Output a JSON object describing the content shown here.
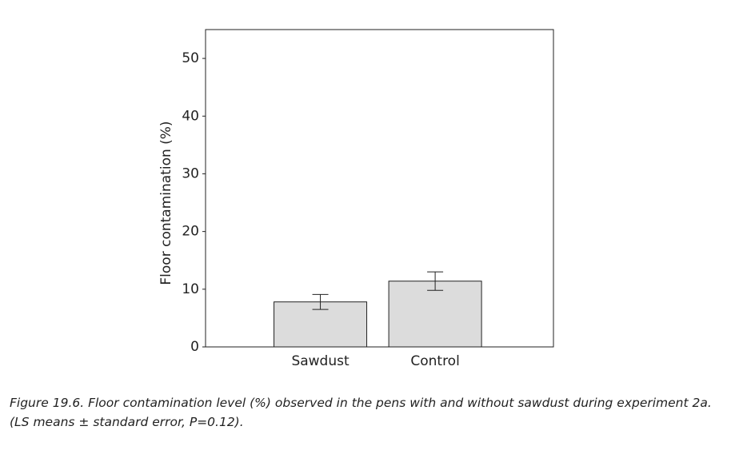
{
  "chart_data": {
    "type": "bar",
    "y_label": "Floor contamination (%)",
    "categories": [
      "Sawdust",
      "Control"
    ],
    "values": [
      7.8,
      11.4
    ],
    "errors": [
      1.3,
      1.6
    ],
    "color": "#dcdcdc",
    "ylim": [
      0,
      55
    ],
    "yticks": [
      0,
      10,
      20,
      30,
      40,
      50
    ],
    "caption": "Figure 19.6. Floor contamination level (%) observed in the pens with and without sawdust during experiment 2a. (LS means ± standard error, P=0.12)."
  }
}
